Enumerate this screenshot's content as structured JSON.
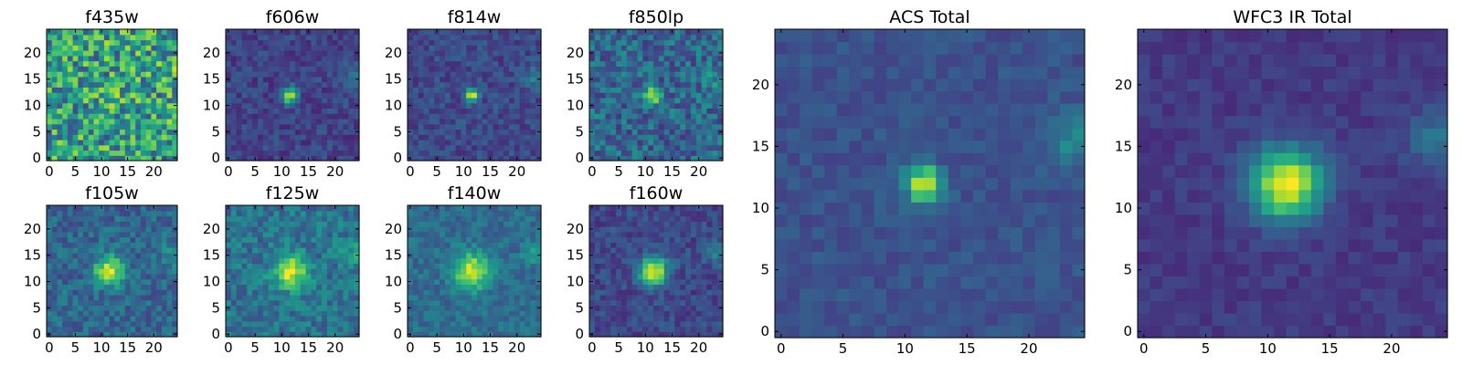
{
  "figure": {
    "colormap": "viridis",
    "grid_size": 25,
    "background": "#ffffff"
  },
  "chart_data": [
    {
      "type": "heatmap",
      "title": "f435w",
      "noise": 0.32,
      "base": 0.55,
      "peak": 0.25,
      "sigma": 1.0,
      "seed": 3,
      "xticks": [
        0,
        5,
        10,
        15,
        20
      ],
      "yticks": [
        0,
        5,
        10,
        15,
        20
      ],
      "xlim": [
        0,
        24
      ],
      "ylim": [
        0,
        24
      ]
    },
    {
      "type": "heatmap",
      "title": "f606w",
      "noise": 0.1,
      "base": 0.2,
      "peak": 0.75,
      "sigma": 1.0,
      "seed": 11,
      "xticks": [
        0,
        5,
        10,
        15,
        20
      ],
      "yticks": [
        0,
        5,
        10,
        15,
        20
      ],
      "xlim": [
        0,
        24
      ],
      "ylim": [
        0,
        24
      ]
    },
    {
      "type": "heatmap",
      "title": "f814w",
      "noise": 0.1,
      "base": 0.22,
      "peak": 0.8,
      "sigma": 0.9,
      "seed": 17,
      "xticks": [
        0,
        5,
        10,
        15,
        20
      ],
      "yticks": [
        0,
        5,
        10,
        15,
        20
      ],
      "xlim": [
        0,
        24
      ],
      "ylim": [
        0,
        24
      ]
    },
    {
      "type": "heatmap",
      "title": "f850lp",
      "noise": 0.18,
      "base": 0.33,
      "peak": 0.62,
      "sigma": 1.0,
      "seed": 23,
      "xticks": [
        0,
        5,
        10,
        15,
        20
      ],
      "yticks": [
        0,
        5,
        10,
        15,
        20
      ],
      "xlim": [
        0,
        24
      ],
      "ylim": [
        0,
        24
      ]
    },
    {
      "type": "heatmap",
      "title": "f105w",
      "noise": 0.13,
      "base": 0.33,
      "peak": 0.62,
      "sigma": 2.0,
      "seed": 29,
      "xticks": [
        0,
        5,
        10,
        15,
        20
      ],
      "yticks": [
        0,
        5,
        10,
        15,
        20
      ],
      "xlim": [
        0,
        24
      ],
      "ylim": [
        0,
        24
      ]
    },
    {
      "type": "heatmap",
      "title": "f125w",
      "noise": 0.14,
      "base": 0.38,
      "peak": 0.58,
      "sigma": 2.2,
      "seed": 31,
      "xticks": [
        0,
        5,
        10,
        15,
        20
      ],
      "yticks": [
        0,
        5,
        10,
        15,
        20
      ],
      "xlim": [
        0,
        24
      ],
      "ylim": [
        0,
        24
      ]
    },
    {
      "type": "heatmap",
      "title": "f140w",
      "noise": 0.1,
      "base": 0.35,
      "peak": 0.6,
      "sigma": 2.4,
      "seed": 37,
      "xticks": [
        0,
        5,
        10,
        15,
        20
      ],
      "yticks": [
        0,
        5,
        10,
        15,
        20
      ],
      "xlim": [
        0,
        24
      ],
      "ylim": [
        0,
        24
      ]
    },
    {
      "type": "heatmap",
      "title": "f160w",
      "noise": 0.1,
      "base": 0.22,
      "peak": 0.75,
      "sigma": 1.9,
      "seed": 41,
      "xticks": [
        0,
        5,
        10,
        15,
        20
      ],
      "yticks": [
        0,
        5,
        10,
        15,
        20
      ],
      "xlim": [
        0,
        24
      ],
      "ylim": [
        0,
        24
      ]
    },
    {
      "type": "heatmap",
      "title": "ACS Total",
      "noise": 0.06,
      "base": 0.25,
      "peak": 0.75,
      "sigma": 1.0,
      "seed": 43,
      "xticks": [
        0,
        5,
        10,
        15,
        20
      ],
      "yticks": [
        0,
        5,
        10,
        15,
        20
      ],
      "xlim": [
        0,
        24
      ],
      "ylim": [
        0,
        24
      ]
    },
    {
      "type": "heatmap",
      "title": "WFC3 IR Total",
      "noise": 0.05,
      "base": 0.17,
      "peak": 0.83,
      "sigma": 2.0,
      "seed": 47,
      "xticks": [
        0,
        5,
        10,
        15,
        20
      ],
      "yticks": [
        0,
        5,
        10,
        15,
        20
      ],
      "xlim": [
        0,
        24
      ],
      "ylim": [
        0,
        24
      ]
    }
  ]
}
